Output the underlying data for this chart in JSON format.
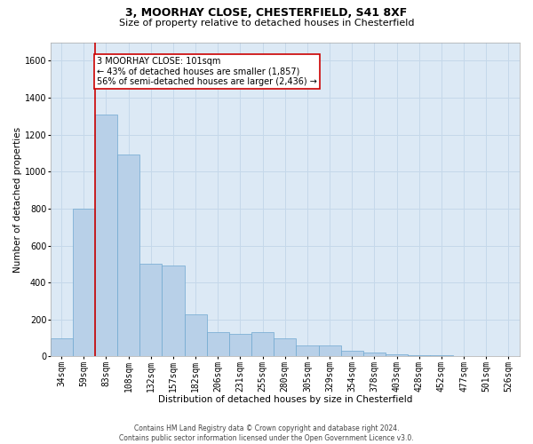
{
  "title_line1": "3, MOORHAY CLOSE, CHESTERFIELD, S41 8XF",
  "title_line2": "Size of property relative to detached houses in Chesterfield",
  "xlabel": "Distribution of detached houses by size in Chesterfield",
  "ylabel": "Number of detached properties",
  "footnote": "Contains HM Land Registry data © Crown copyright and database right 2024.\nContains public sector information licensed under the Open Government Licence v3.0.",
  "bins": [
    "34sqm",
    "59sqm",
    "83sqm",
    "108sqm",
    "132sqm",
    "157sqm",
    "182sqm",
    "206sqm",
    "231sqm",
    "255sqm",
    "280sqm",
    "305sqm",
    "329sqm",
    "354sqm",
    "378sqm",
    "403sqm",
    "428sqm",
    "452sqm",
    "477sqm",
    "501sqm",
    "526sqm"
  ],
  "values": [
    100,
    800,
    1310,
    1090,
    500,
    490,
    230,
    130,
    120,
    130,
    100,
    60,
    60,
    30,
    20,
    10,
    8,
    5,
    4,
    3,
    3
  ],
  "bar_color": "#b8d0e8",
  "bar_edge_color": "#6fa8d0",
  "grid_color": "#c5d8ea",
  "background_color": "#dce9f5",
  "annotation_text": "3 MOORHAY CLOSE: 101sqm\n← 43% of detached houses are smaller (1,857)\n56% of semi-detached houses are larger (2,436) →",
  "annotation_box_color": "#ffffff",
  "annotation_box_edge": "#cc0000",
  "ylim": [
    0,
    1700
  ],
  "yticks": [
    0,
    200,
    400,
    600,
    800,
    1000,
    1200,
    1400,
    1600
  ],
  "property_line_color": "#cc0000",
  "property_line_bin_index": 2,
  "title_fontsize": 9,
  "subtitle_fontsize": 8,
  "axis_label_fontsize": 7.5,
  "tick_fontsize": 7,
  "annotation_fontsize": 7,
  "footnote_fontsize": 5.5
}
